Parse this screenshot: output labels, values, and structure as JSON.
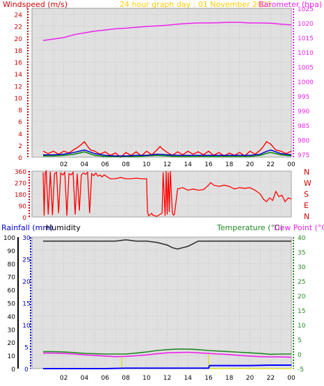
{
  "header": {
    "windspeed_label": "Windspeed (m/s)",
    "graph_title": "24 hour graph day : 01 November 2025",
    "barometer_label": "Barometer (hpa)"
  },
  "lower_header": {
    "rainfall_label": "Rainfall (mm)",
    "humidity_label": "Humidity",
    "temperature_label": "Temperature (°C)",
    "dewpoint_label": "Dew Point (°C)"
  },
  "direction_labels": [
    "N",
    "W",
    "S",
    "E",
    "N"
  ],
  "colors": {
    "barometer": "#ee22ee",
    "windspeed": "#ff0000",
    "windavg": "#0000cc",
    "windgreen": "#008800",
    "direction": "#ff0000",
    "humidity": "#333333",
    "temperature": "#228822",
    "dewpoint": "#ee22ee",
    "rainfall": "#0000ff",
    "rainrate": "#dddd00",
    "title": "#ffcc00"
  },
  "chart_data": [
    {
      "type": "line",
      "name": "wind-barometer",
      "x_ticks": [
        "02",
        "04",
        "06",
        "08",
        "10",
        "12",
        "14",
        "16",
        "18",
        "20",
        "22",
        "00"
      ],
      "y_left_label": "Windspeed (m/s)",
      "y_left_ticks": [
        "0",
        "2",
        "4",
        "6",
        "8",
        "10",
        "12",
        "14",
        "16",
        "18",
        "20",
        "22",
        "24"
      ],
      "y_left_lim": [
        0,
        25
      ],
      "y_right_label": "Barometer (hpa)",
      "y_right_ticks": [
        "975",
        "980",
        "985",
        "990",
        "995",
        "1000",
        "1005",
        "1010",
        "1015",
        "1020",
        "1025"
      ],
      "y_right_lim": [
        974,
        1025
      ],
      "series": [
        {
          "name": "Barometer",
          "axis": "right",
          "x": [
            0,
            1,
            2,
            3,
            4,
            5,
            6,
            7,
            8,
            9,
            10,
            11,
            12,
            13,
            14,
            15,
            16,
            17,
            18,
            19,
            20,
            21,
            22,
            23,
            24
          ],
          "values": [
            1014,
            1014.5,
            1015,
            1016,
            1016.6,
            1017.2,
            1017.6,
            1018,
            1018.2,
            1018.5,
            1018.8,
            1019,
            1019.2,
            1019.6,
            1019.8,
            1020,
            1020,
            1020.1,
            1020.2,
            1020.2,
            1020,
            1020,
            1019.9,
            1019.6,
            1019.3
          ]
        },
        {
          "name": "Windspeed",
          "axis": "left",
          "x": [
            0,
            0.5,
            1,
            1.5,
            2,
            2.5,
            3,
            3.3,
            3.6,
            4,
            4.3,
            4.6,
            5,
            5.5,
            6,
            6.5,
            7,
            7.5,
            8,
            8.5,
            9,
            9.5,
            10,
            10.5,
            11,
            11.3,
            11.6,
            12,
            12.5,
            13,
            13.5,
            14,
            14.5,
            15,
            15.5,
            16,
            16.5,
            17,
            17.5,
            18,
            18.5,
            19,
            19.5,
            20,
            20.5,
            21,
            21.3,
            21.6,
            22,
            22.5,
            23,
            23.5,
            24
          ],
          "values": [
            1,
            0.6,
            1,
            0.5,
            1,
            0.7,
            1.3,
            1.6,
            2,
            2.6,
            1.8,
            1.2,
            1,
            0.5,
            0.9,
            0.3,
            0.7,
            0,
            0.8,
            0.3,
            0.9,
            0.2,
            1,
            0.4,
            1.2,
            1.8,
            1.3,
            0.8,
            0.3,
            0.9,
            0.4,
            1,
            0.5,
            0.9,
            0.4,
            1,
            0.3,
            0.8,
            0.2,
            0.7,
            0.3,
            0.8,
            0.2,
            1,
            0.5,
            1.2,
            1.8,
            2.6,
            2.2,
            1.2,
            1,
            0.6,
            1
          ]
        },
        {
          "name": "Wind average",
          "axis": "left",
          "x": [
            0,
            1,
            2,
            3,
            3.5,
            4,
            4.5,
            5,
            6,
            7,
            8,
            9,
            10,
            11,
            12,
            13,
            14,
            15,
            16,
            17,
            18,
            19,
            20,
            21,
            21.5,
            22,
            23,
            24
          ],
          "values": [
            0.4,
            0.4,
            0.5,
            0.8,
            1,
            1.2,
            0.9,
            0.6,
            0.3,
            0.2,
            0.2,
            0.3,
            0.3,
            0.5,
            0.4,
            0.3,
            0.3,
            0.3,
            0.3,
            0.3,
            0.3,
            0.3,
            0.3,
            0.5,
            0.9,
            1.2,
            0.6,
            0.4
          ]
        },
        {
          "name": "Wind green",
          "axis": "left",
          "x": [
            0,
            1,
            2,
            3,
            3.5,
            4,
            4.5,
            5,
            6,
            7,
            8,
            9,
            10,
            11,
            12,
            13,
            14,
            15,
            16,
            17,
            18,
            19,
            20,
            21,
            21.5,
            22,
            23,
            24
          ],
          "values": [
            0.2,
            0.2,
            0.3,
            0.5,
            0.7,
            0.9,
            0.6,
            0.3,
            0.1,
            0.1,
            0.1,
            0.1,
            0.2,
            0.3,
            0.2,
            0.1,
            0.1,
            0.1,
            0.1,
            0.1,
            0.1,
            0.1,
            0.1,
            0.3,
            0.6,
            0.8,
            0.4,
            0.2
          ]
        }
      ]
    },
    {
      "type": "line",
      "name": "wind-direction",
      "y_ticks": [
        "0",
        "90",
        "180",
        "270",
        "360"
      ],
      "y_lim": [
        0,
        360
      ],
      "series": [
        {
          "name": "Direction",
          "x": [
            0,
            0.1,
            0.2,
            0.3,
            0.5,
            0.7,
            0.9,
            1.1,
            1.3,
            1.5,
            1.7,
            1.9,
            2.1,
            2.3,
            2.5,
            2.7,
            2.9,
            3.1,
            3.3,
            3.5,
            3.7,
            3.9,
            4.1,
            4.3,
            4.5,
            4.7,
            4.9,
            5.1,
            5.3,
            5.5,
            5.7,
            5.9,
            6.5,
            7,
            7.5,
            8,
            8.5,
            9,
            9.5,
            10,
            10.1,
            10.2,
            10.4,
            10.5,
            10.6,
            11,
            11.5,
            11.6,
            11.8,
            11.9,
            12,
            12.1,
            12.2,
            12.3,
            12.5,
            12.6,
            12.7,
            13,
            13.5,
            14,
            14.5,
            15,
            15.5,
            16,
            16.2,
            16.5,
            17,
            17.5,
            18,
            18.5,
            19,
            19.5,
            20,
            20.5,
            21,
            21.3,
            21.6,
            21.9,
            22.2,
            22.5,
            22.8,
            23.1,
            23.4,
            23.7,
            24
          ],
          "values": [
            350,
            10,
            345,
            360,
            20,
            355,
            15,
            340,
            350,
            30,
            345,
            330,
            350,
            10,
            340,
            330,
            350,
            20,
            340,
            50,
            330,
            345,
            335,
            350,
            30,
            340,
            325,
            345,
            320,
            330,
            315,
            330,
            300,
            300,
            310,
            300,
            300,
            305,
            300,
            300,
            40,
            10,
            20,
            30,
            15,
            5,
            30,
            350,
            10,
            360,
            20,
            350,
            40,
            360,
            30,
            15,
            20,
            220,
            230,
            210,
            220,
            210,
            215,
            250,
            270,
            250,
            240,
            250,
            240,
            220,
            230,
            225,
            230,
            210,
            180,
            140,
            120,
            150,
            130,
            200,
            160,
            170,
            120,
            150,
            140
          ]
        }
      ]
    },
    {
      "type": "line",
      "name": "temp-humidity-rain",
      "x_ticks": [
        "02",
        "04",
        "06",
        "08",
        "10",
        "12",
        "14",
        "16",
        "18",
        "20",
        "22",
        "00"
      ],
      "y_left_ticks": [
        "0",
        "10",
        "20",
        "30",
        "40",
        "50",
        "60",
        "70",
        "80",
        "90",
        "100"
      ],
      "y_left_lim": [
        0,
        100
      ],
      "y_rain_ticks": [
        "0",
        "5",
        "10",
        "15",
        "20",
        "25",
        "30"
      ],
      "y_rain_lim": [
        0,
        30
      ],
      "y_right_ticks": [
        "-5",
        "0",
        "5",
        "10",
        "15",
        "20",
        "25",
        "30",
        "35",
        "40"
      ],
      "y_right_lim": [
        -5,
        40
      ],
      "series": [
        {
          "name": "Humidity",
          "axis": "left",
          "x": [
            0,
            1,
            2,
            3,
            4,
            5,
            6,
            7,
            8,
            9,
            10,
            11,
            12,
            12.5,
            13,
            13.5,
            14,
            14.5,
            15,
            16,
            17,
            18,
            19,
            20,
            21,
            22,
            23,
            24
          ],
          "values": [
            97,
            97,
            97,
            97,
            97,
            97,
            97,
            97,
            98,
            97,
            97,
            96,
            94,
            92,
            91,
            92,
            93,
            95,
            97,
            97,
            97,
            97,
            97,
            97,
            97,
            97,
            97,
            97
          ]
        },
        {
          "name": "Temperature",
          "axis": "right",
          "x": [
            0,
            1,
            2,
            3,
            4,
            5,
            6,
            7,
            8,
            9,
            10,
            11,
            12,
            13,
            14,
            15,
            16,
            17,
            18,
            19,
            20,
            21,
            22,
            23,
            24
          ],
          "values": [
            0.8,
            0.8,
            0.7,
            0.5,
            0.2,
            0.1,
            0,
            0,
            0,
            0.3,
            0.7,
            1.2,
            1.5,
            1.7,
            1.7,
            1.5,
            1.2,
            1.0,
            0.8,
            0.6,
            0.4,
            0.2,
            -0.1,
            0,
            0
          ]
        },
        {
          "name": "Dew Point",
          "axis": "right",
          "x": [
            0,
            1,
            2,
            3,
            4,
            5,
            6,
            7,
            8,
            9,
            10,
            11,
            12,
            13,
            14,
            15,
            16,
            17,
            18,
            19,
            20,
            21,
            22,
            23,
            24
          ],
          "values": [
            0.3,
            0.3,
            0.2,
            0,
            -0.3,
            -0.5,
            -0.7,
            -0.9,
            -0.8,
            -0.6,
            -0.3,
            0.1,
            0.4,
            0.5,
            0.6,
            0.4,
            0.2,
            0,
            -0.2,
            -0.5,
            -0.7,
            -0.9,
            -1.0,
            -1.0,
            -1.1
          ]
        },
        {
          "name": "Rainfall",
          "axis": "rain",
          "x": [
            0,
            2,
            4,
            6,
            8,
            10,
            12,
            14,
            16,
            16.1,
            18,
            20,
            22,
            24
          ],
          "values": [
            0,
            0,
            0,
            0,
            0.1,
            0.1,
            0.1,
            0.1,
            0.1,
            0.7,
            0.7,
            0.7,
            0.8,
            0.8
          ]
        },
        {
          "name": "Rain rate",
          "axis": "rain",
          "x": [
            0,
            7.6,
            7.6,
            7.6,
            24
          ],
          "values": [
            0,
            0,
            2.5,
            0,
            0
          ],
          "extra_x": [
            16,
            16,
            16
          ],
          "extra_values": [
            0,
            3.2,
            0
          ]
        }
      ]
    }
  ]
}
